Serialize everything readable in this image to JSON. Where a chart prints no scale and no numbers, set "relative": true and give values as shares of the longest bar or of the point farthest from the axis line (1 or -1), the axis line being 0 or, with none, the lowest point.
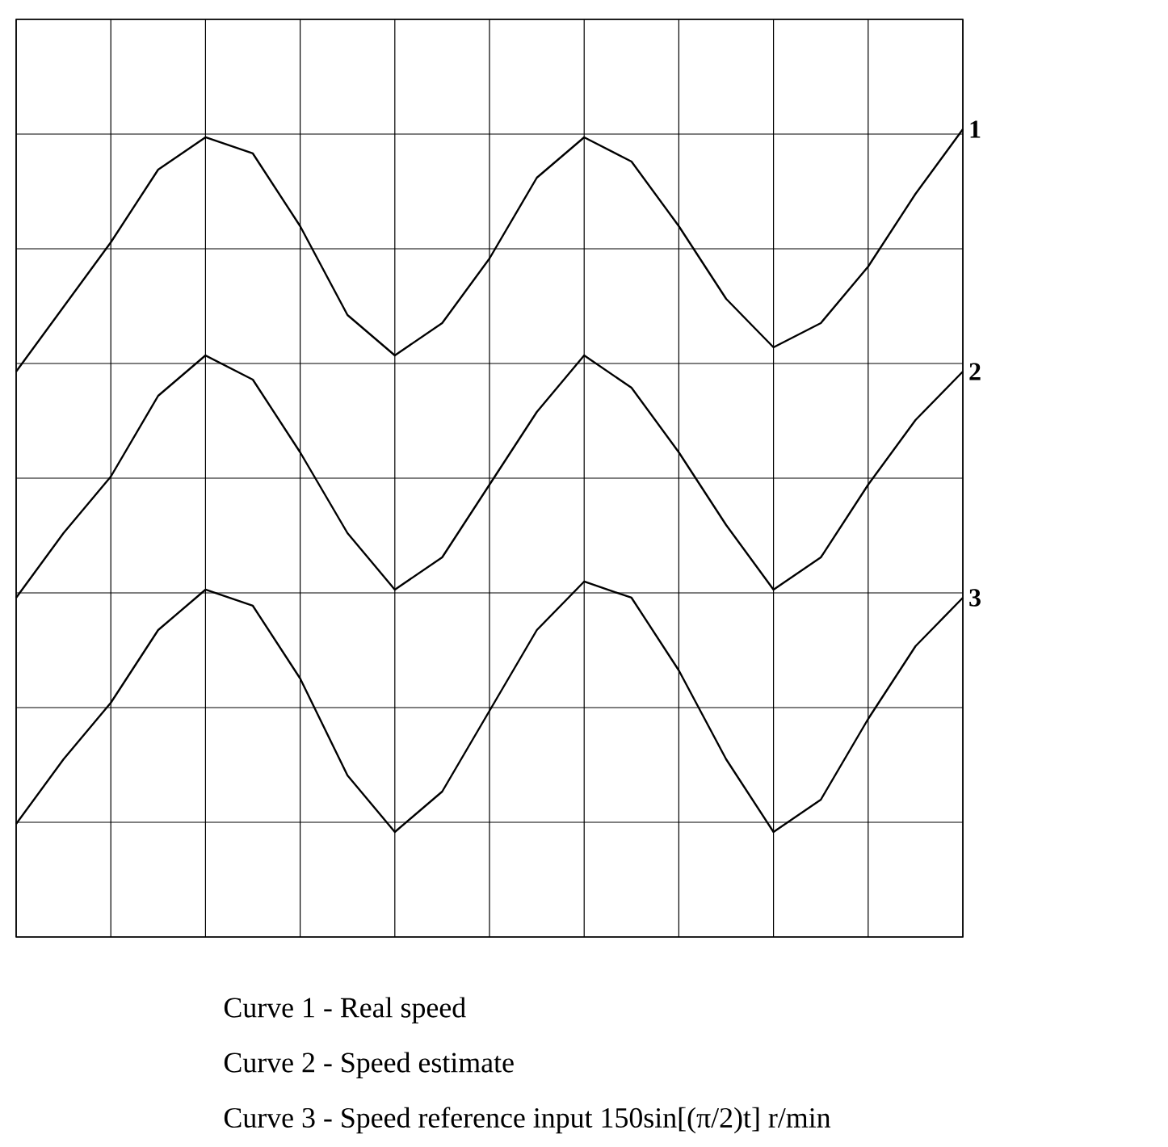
{
  "chart_data": {
    "type": "line",
    "relative": true,
    "grid": true,
    "categories": [
      null,
      null,
      null,
      null,
      null,
      null,
      null,
      null,
      null,
      null,
      null,
      null,
      null,
      null,
      null,
      null,
      null,
      null,
      null,
      null,
      null
    ],
    "series": [
      {
        "name": "1",
        "color": "#000000",
        "values": [
          0.7,
          0.78,
          0.86,
          0.95,
          0.99,
          0.97,
          0.88,
          0.77,
          0.72,
          0.76,
          0.84,
          0.94,
          0.99,
          0.96,
          0.88,
          0.79,
          0.73,
          0.76,
          0.83,
          0.92,
          1.0
        ]
      },
      {
        "name": "2",
        "color": "#000000",
        "values": [
          0.42,
          0.5,
          0.57,
          0.67,
          0.72,
          0.69,
          0.6,
          0.5,
          0.43,
          0.47,
          0.56,
          0.65,
          0.72,
          0.68,
          0.6,
          0.51,
          0.43,
          0.47,
          0.56,
          0.64,
          0.7
        ]
      },
      {
        "name": "3",
        "color": "#000000",
        "values": [
          0.14,
          0.22,
          0.29,
          0.38,
          0.43,
          0.41,
          0.32,
          0.2,
          0.13,
          0.18,
          0.28,
          0.38,
          0.44,
          0.42,
          0.33,
          0.22,
          0.13,
          0.17,
          0.27,
          0.36,
          0.42
        ]
      }
    ],
    "annotations": [
      "Curve 1 - Real speed",
      "Curve 2 - Speed estimate",
      "Curve 3 - Speed reference input 150sin[(π/2)t] r/min"
    ]
  }
}
